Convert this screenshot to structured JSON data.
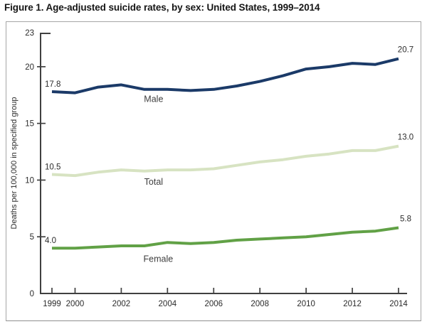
{
  "title": "Figure 1. Age-adjusted suicide rates, by sex: United States, 1999–2014",
  "chart_data": {
    "type": "line",
    "title": "Figure 1. Age-adjusted suicide rates, by sex: United States, 1999–2014",
    "x": [
      1999,
      2000,
      2001,
      2002,
      2003,
      2004,
      2005,
      2006,
      2007,
      2008,
      2009,
      2010,
      2011,
      2012,
      2013,
      2014
    ],
    "series": [
      {
        "name": "Male",
        "color": "#1b3a68",
        "values": [
          17.8,
          17.7,
          18.2,
          18.4,
          18.0,
          18.0,
          17.9,
          18.0,
          18.3,
          18.7,
          19.2,
          19.8,
          20.0,
          20.3,
          20.2,
          20.7
        ],
        "start_label": "17.8",
        "end_label": "20.7",
        "name_anchor": {
          "year": 2003.4,
          "value": 16.9
        }
      },
      {
        "name": "Total",
        "color": "#d7e3c2",
        "values": [
          10.5,
          10.4,
          10.7,
          10.9,
          10.8,
          10.9,
          10.9,
          11.0,
          11.3,
          11.6,
          11.8,
          12.1,
          12.3,
          12.6,
          12.6,
          13.0
        ],
        "start_label": "10.5",
        "end_label": "13.0",
        "name_anchor": {
          "year": 2003.4,
          "value": 9.6
        }
      },
      {
        "name": "Female",
        "color": "#61a146",
        "values": [
          4.0,
          4.0,
          4.1,
          4.2,
          4.2,
          4.5,
          4.4,
          4.5,
          4.7,
          4.8,
          4.9,
          5.0,
          5.2,
          5.4,
          5.5,
          5.8
        ],
        "start_label": "4.0",
        "end_label": "5.8",
        "name_anchor": {
          "year": 2003.6,
          "value": 2.8
        }
      }
    ],
    "xlabel": "",
    "ylabel": "Deaths per 100,000 in specified group",
    "y_ticks": [
      0,
      5,
      10,
      15,
      20,
      23
    ],
    "x_ticks": [
      1999,
      2000,
      2002,
      2004,
      2006,
      2008,
      2010,
      2012,
      2014
    ],
    "ylim": [
      0,
      23
    ],
    "xlim": [
      1999,
      2014
    ],
    "grid": false,
    "legend_position": "inline-labels"
  },
  "theme": {
    "axis_color": "#404040",
    "tick_text_color": "#2b2b2b",
    "label_text_color": "#3d3d3d",
    "value_label_color": "#2b2b2b"
  }
}
